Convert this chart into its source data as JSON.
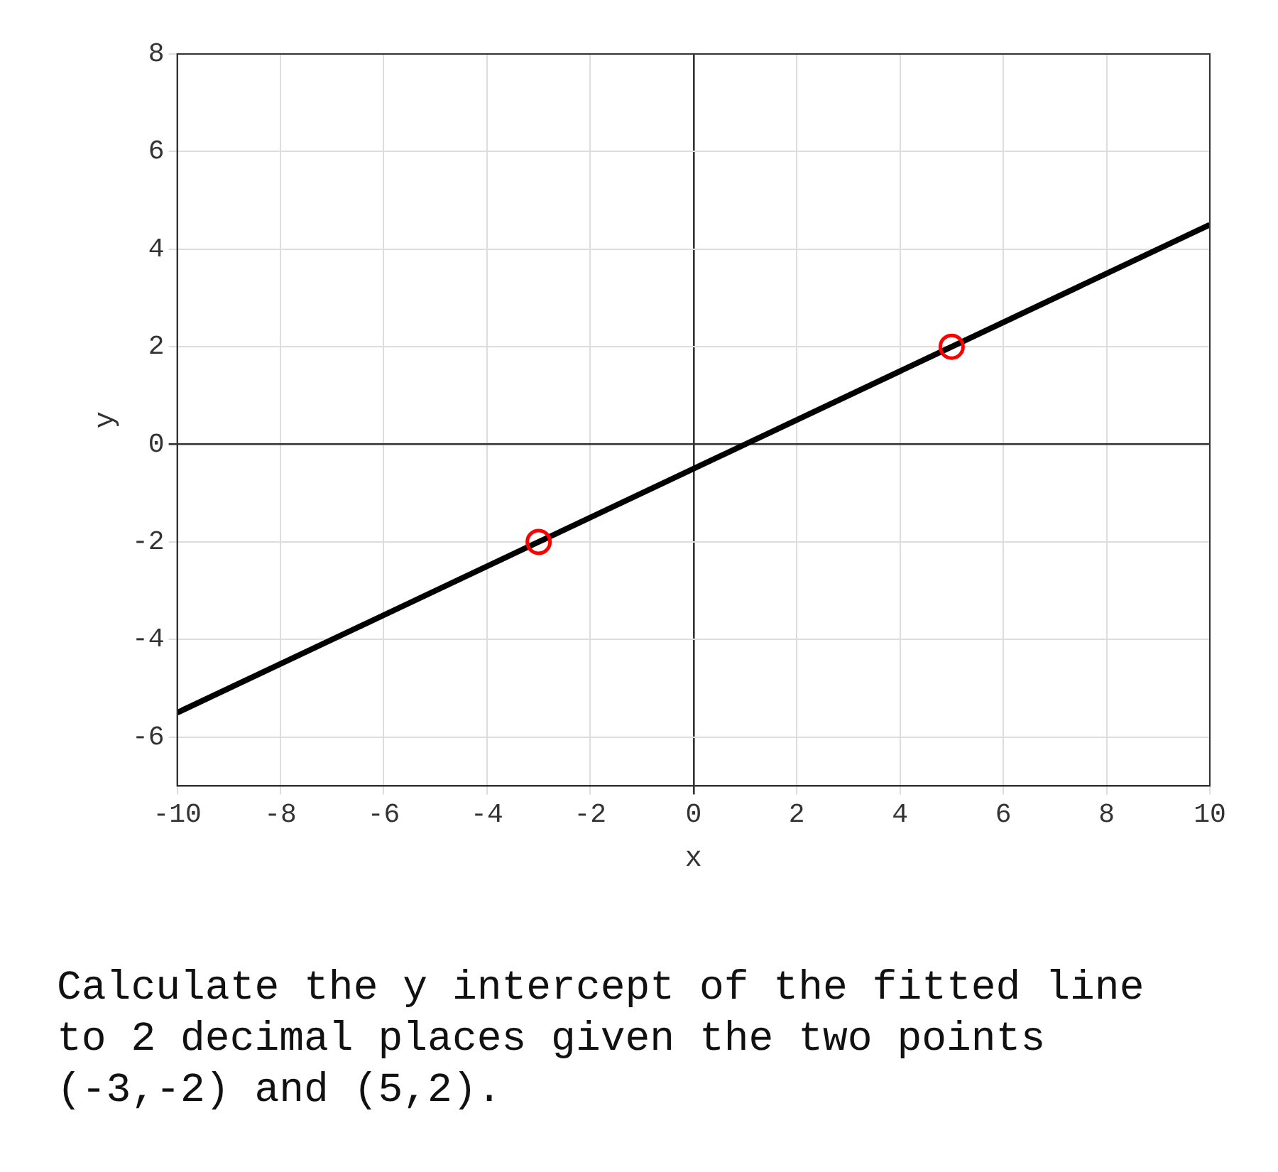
{
  "chart_data": {
    "type": "line",
    "xlabel": "x",
    "ylabel": "y",
    "xlim": [
      -10,
      10
    ],
    "xticks": [
      -10,
      -8,
      -6,
      -4,
      -2,
      0,
      2,
      4,
      6,
      8,
      10
    ],
    "ylim": [
      -7,
      8
    ],
    "yticks": [
      -6,
      -4,
      -2,
      0,
      2,
      4,
      6,
      8
    ],
    "grid": true,
    "series": [
      {
        "type": "line",
        "x": [
          -10,
          10
        ],
        "values": [
          -5.5,
          4.5
        ],
        "color": "#000000",
        "marker": "none"
      },
      {
        "type": "scatter",
        "x": [
          -3,
          5
        ],
        "values": [
          -2,
          2
        ],
        "color": "#ff0000",
        "marker": "circle"
      }
    ],
    "annotations": [
      "Calculate the y intercept of the fitted line to 2 decimal places given the two points (-3,-2) and (5,2)."
    ]
  }
}
